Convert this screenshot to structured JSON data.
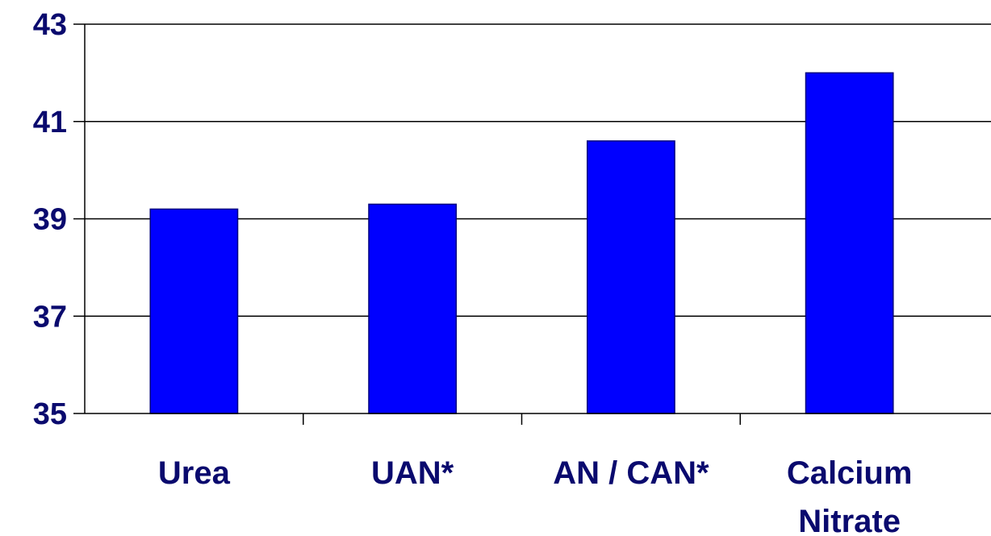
{
  "chart_data": {
    "type": "bar",
    "categories": [
      [
        "Urea"
      ],
      [
        "UAN*"
      ],
      [
        "AN / CAN*"
      ],
      [
        "Calcium",
        "Nitrate"
      ]
    ],
    "values": [
      39.2,
      39.3,
      40.6,
      42.0
    ],
    "ylim": [
      35,
      43
    ],
    "yticks": [
      35,
      37,
      39,
      41,
      43
    ],
    "grid": true,
    "colors": {
      "bar": "#0000ff",
      "bar_border": "#000080",
      "text": "#0a0a6e",
      "grid": "#000000"
    }
  }
}
